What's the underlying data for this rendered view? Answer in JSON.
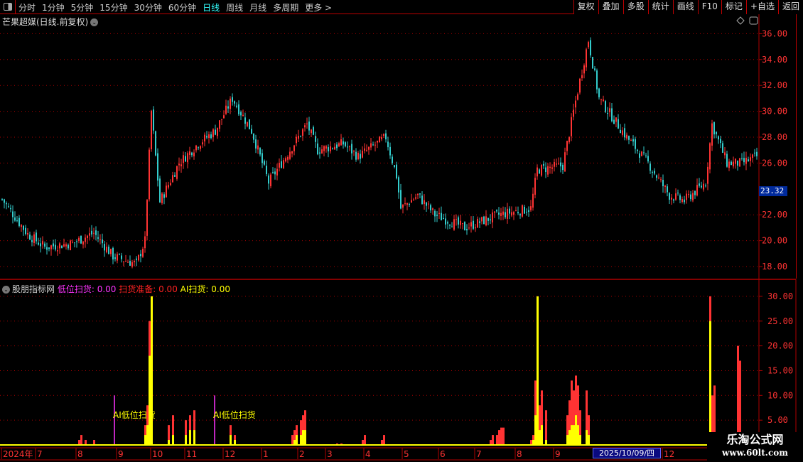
{
  "toolbar": {
    "periods": [
      "分时",
      "1分钟",
      "5分钟",
      "15分钟",
      "30分钟",
      "60分钟",
      "日线",
      "周线",
      "月线",
      "多周期",
      "更多 >"
    ],
    "active": "日线",
    "tools": [
      "复权",
      "叠加",
      "多股",
      "统计",
      "画线",
      "F10",
      "标记",
      "+自选",
      "返回"
    ]
  },
  "main": {
    "title": "芒果超媒(日线.前复权)",
    "current_price": "23.32",
    "y_ticks": [
      18,
      20,
      22,
      26,
      28,
      30,
      32,
      34,
      36
    ],
    "y_range": [
      17.5,
      36.8
    ],
    "price_path": [
      [
        0,
        23.2
      ],
      [
        12,
        20.5
      ],
      [
        20,
        19.5
      ],
      [
        33,
        19.8
      ],
      [
        43,
        20.6
      ],
      [
        52,
        18.8
      ],
      [
        63,
        18.2
      ],
      [
        67,
        20
      ],
      [
        70,
        30
      ],
      [
        74,
        23
      ],
      [
        83,
        26
      ],
      [
        92,
        27.5
      ],
      [
        100,
        28.5
      ],
      [
        108,
        31
      ],
      [
        117,
        28.5
      ],
      [
        125,
        24.5
      ],
      [
        133,
        26.5
      ],
      [
        143,
        29
      ],
      [
        148,
        27
      ],
      [
        160,
        27.5
      ],
      [
        167,
        26.5
      ],
      [
        180,
        28
      ],
      [
        185,
        25
      ],
      [
        187,
        22.5
      ],
      [
        195,
        23.5
      ],
      [
        203,
        22
      ],
      [
        217,
        21
      ],
      [
        233,
        22
      ],
      [
        248,
        22.5
      ],
      [
        251,
        25.5
      ],
      [
        263,
        25.8
      ],
      [
        268,
        30
      ],
      [
        275,
        35.5
      ],
      [
        280,
        31
      ],
      [
        293,
        28
      ],
      [
        303,
        26
      ],
      [
        313,
        23.5
      ],
      [
        320,
        23.1
      ],
      [
        330,
        24.5
      ],
      [
        333,
        29
      ],
      [
        340,
        26
      ],
      [
        347,
        26
      ],
      [
        354,
        26.5
      ]
    ]
  },
  "indicator": {
    "name": "股朋指标网",
    "lines": [
      {
        "label": "低位扫货: 0.00",
        "color": "#ff33ff"
      },
      {
        "label": "扫货准备: 0.00",
        "color": "#ff2222"
      },
      {
        "label": "AI扫货: 0.00",
        "color": "#ffff00"
      }
    ],
    "y_ticks": [
      5,
      10,
      15,
      20,
      25,
      30
    ],
    "annotation": "AI低位扫货",
    "events": [
      [
        36,
        1,
        0
      ],
      [
        37,
        2,
        0
      ],
      [
        39,
        1,
        0
      ],
      [
        43,
        1,
        0
      ],
      [
        53,
        10,
        0,
        "m"
      ],
      [
        67,
        4,
        2
      ],
      [
        68,
        8,
        4
      ],
      [
        69,
        25,
        18
      ],
      [
        70,
        30,
        30
      ],
      [
        78,
        4,
        1
      ],
      [
        80,
        6,
        2
      ],
      [
        86,
        5,
        2
      ],
      [
        88,
        6,
        3
      ],
      [
        90,
        7,
        3
      ],
      [
        100,
        10,
        0,
        "m"
      ],
      [
        107,
        4,
        2
      ],
      [
        109,
        2,
        1
      ],
      [
        136,
        2,
        0
      ],
      [
        137,
        3,
        1
      ],
      [
        138,
        4,
        2
      ],
      [
        140,
        5,
        2
      ],
      [
        141,
        6,
        3
      ],
      [
        142,
        7,
        3
      ],
      [
        157,
        0.3,
        0
      ],
      [
        159,
        0.3,
        0
      ],
      [
        169,
        1,
        0
      ],
      [
        170,
        2,
        0
      ],
      [
        178,
        1,
        0
      ],
      [
        179,
        2,
        0
      ],
      [
        229,
        1,
        0
      ],
      [
        230,
        2,
        0
      ],
      [
        232,
        2,
        0
      ],
      [
        233,
        3,
        0
      ],
      [
        234,
        3.5,
        0
      ],
      [
        235,
        3.5,
        0
      ],
      [
        248,
        1,
        0
      ],
      [
        249,
        2,
        1
      ],
      [
        250,
        13,
        6
      ],
      [
        251,
        30,
        30
      ],
      [
        252,
        8,
        3
      ],
      [
        253,
        11,
        4
      ],
      [
        255,
        7,
        1
      ],
      [
        265,
        6,
        2
      ],
      [
        266,
        9,
        3
      ],
      [
        267,
        13,
        4
      ],
      [
        268,
        11,
        4
      ],
      [
        269,
        14,
        6
      ],
      [
        270,
        12,
        4
      ],
      [
        271,
        7,
        2
      ],
      [
        274,
        11,
        3
      ],
      [
        275,
        6,
        2
      ],
      [
        332,
        30,
        25
      ],
      [
        333,
        10,
        1
      ],
      [
        334,
        12,
        1
      ],
      [
        345,
        20,
        0
      ],
      [
        346,
        17,
        0
      ]
    ]
  },
  "x_axis": {
    "labels": [
      [
        "2024年",
        0
      ],
      [
        "7",
        16
      ],
      [
        "8",
        35
      ],
      [
        "9",
        54
      ],
      [
        "10",
        70
      ],
      [
        "11",
        86
      ],
      [
        "12",
        104
      ],
      [
        "1",
        122
      ],
      [
        "2",
        139
      ],
      [
        "3",
        152
      ],
      [
        "4",
        170
      ],
      [
        "5",
        188
      ],
      [
        "6",
        205
      ],
      [
        "7",
        222
      ],
      [
        "8",
        241
      ],
      [
        "9",
        259
      ],
      [
        "12",
        310
      ]
    ],
    "cursor_date": "2025/10/09/四"
  },
  "watermark": {
    "line1": "乐淘公式网",
    "line2": "www.60lt.com"
  },
  "colors": {
    "up": "#ff3333",
    "down": "#33cccc",
    "grid": "#b00000",
    "indicator_yellow": "#ffff00",
    "magenta": "#ff33ff"
  }
}
